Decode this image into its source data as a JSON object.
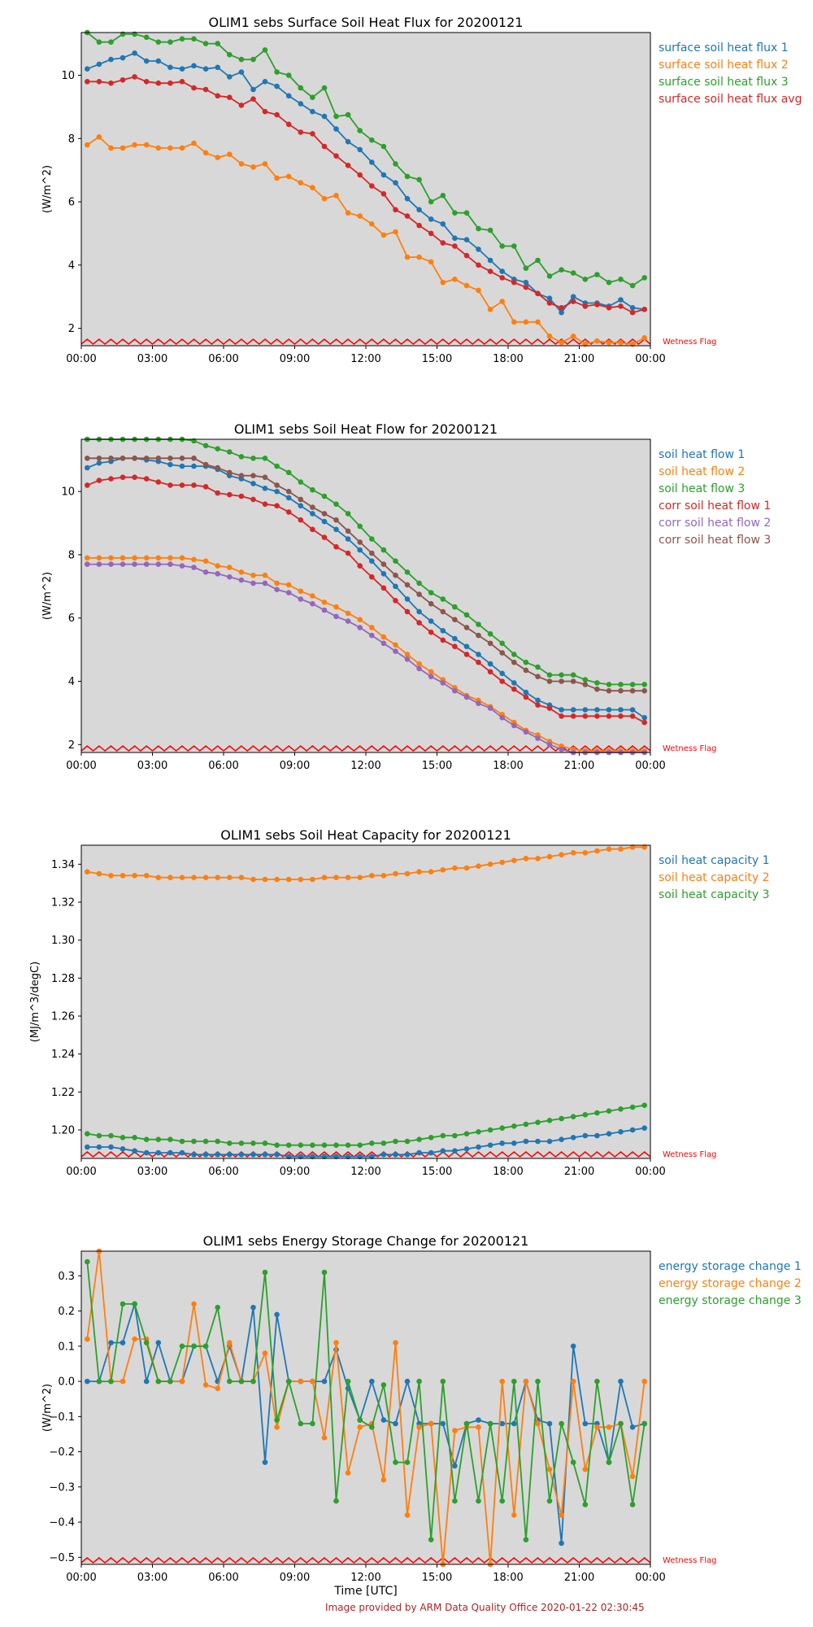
{
  "footer": {
    "credit": "Image provided by ARM Data Quality Office 2020-01-22 02:30:45"
  },
  "xlabel": "Time [UTC]",
  "xticks": [
    "00:00",
    "03:00",
    "06:00",
    "09:00",
    "12:00",
    "15:00",
    "18:00",
    "21:00",
    "00:00"
  ],
  "colors": {
    "c1": "#1f77b4",
    "c2": "#ff7f0e",
    "c3": "#2ca02c",
    "c4": "#d62728",
    "c5": "#9467bd",
    "c6": "#8c564b",
    "flag": "#ff0000",
    "plot_bg": "#d8d8d8"
  },
  "chart_data": [
    {
      "type": "line",
      "title": "OLIM1 sebs Surface Soil Heat Flux for 20200121",
      "ylabel": "(W/m^2)",
      "ylim": [
        1.45,
        11.35
      ],
      "yticks": [
        2,
        4,
        6,
        8,
        10
      ],
      "xlim": [
        0,
        24
      ],
      "flag_label": "Wetness Flag",
      "series": [
        {
          "name": "surface soil heat flux 1",
          "color": "#1f77b4",
          "values": [
            10.2,
            10.35,
            10.5,
            10.55,
            10.7,
            10.45,
            10.45,
            10.25,
            10.2,
            10.3,
            10.2,
            10.25,
            9.95,
            10.1,
            9.55,
            9.8,
            9.65,
            9.35,
            9.1,
            8.85,
            8.7,
            8.3,
            7.9,
            7.65,
            7.25,
            6.85,
            6.6,
            6.1,
            5.75,
            5.45,
            5.3,
            4.85,
            4.8,
            4.5,
            4.15,
            3.8,
            3.55,
            3.45,
            3.1,
            2.95,
            2.5,
            3.0,
            2.8,
            2.8,
            2.7,
            2.9,
            2.65,
            2.6
          ]
        },
        {
          "name": "surface soil heat flux 2",
          "color": "#ff7f0e",
          "values": [
            7.8,
            8.05,
            7.7,
            7.7,
            7.8,
            7.8,
            7.7,
            7.7,
            7.7,
            7.85,
            7.55,
            7.4,
            7.5,
            7.2,
            7.1,
            7.2,
            6.75,
            6.8,
            6.6,
            6.45,
            6.1,
            6.2,
            5.65,
            5.55,
            5.3,
            4.95,
            5.05,
            4.25,
            4.25,
            4.1,
            3.45,
            3.55,
            3.35,
            3.2,
            2.6,
            2.85,
            2.2,
            2.2,
            2.2,
            1.75,
            1.55,
            1.75,
            1.5,
            1.6,
            1.55,
            1.55,
            1.5,
            1.7
          ]
        },
        {
          "name": "surface soil heat flux 3",
          "color": "#2ca02c",
          "values": [
            11.35,
            11.05,
            11.05,
            11.3,
            11.3,
            11.2,
            11.05,
            11.05,
            11.15,
            11.15,
            11.0,
            11.0,
            10.65,
            10.5,
            10.5,
            10.8,
            10.1,
            10.0,
            9.6,
            9.3,
            9.6,
            8.7,
            8.75,
            8.25,
            7.95,
            7.75,
            7.2,
            6.8,
            6.7,
            6.0,
            6.2,
            5.65,
            5.65,
            5.15,
            5.1,
            4.6,
            4.6,
            3.9,
            4.15,
            3.65,
            3.85,
            3.75,
            3.55,
            3.7,
            3.45,
            3.55,
            3.35,
            3.6
          ]
        },
        {
          "name": "surface soil heat flux avg",
          "color": "#d62728",
          "values": [
            9.8,
            9.8,
            9.75,
            9.85,
            9.95,
            9.8,
            9.75,
            9.75,
            9.8,
            9.6,
            9.55,
            9.35,
            9.3,
            9.05,
            9.25,
            8.85,
            8.75,
            8.45,
            8.2,
            8.15,
            7.75,
            7.45,
            7.15,
            6.85,
            6.5,
            6.25,
            5.75,
            5.55,
            5.25,
            5.0,
            4.7,
            4.6,
            4.3,
            4.0,
            3.8,
            3.6,
            3.45,
            3.3,
            3.1,
            2.8,
            2.65,
            2.85,
            2.7,
            2.75,
            2.65,
            2.7,
            2.5,
            2.6
          ]
        }
      ]
    },
    {
      "type": "line",
      "title": "OLIM1 sebs Soil Heat Flow for 20200121",
      "ylabel": "(W/m^2)",
      "ylim": [
        1.75,
        11.65
      ],
      "yticks": [
        2,
        4,
        6,
        8,
        10
      ],
      "xlim": [
        0,
        24
      ],
      "flag_label": "Wetness Flag",
      "series": [
        {
          "name": "soil heat flow 1",
          "color": "#1f77b4",
          "values": [
            10.75,
            10.9,
            10.95,
            11.05,
            11.05,
            11.0,
            10.95,
            10.85,
            10.8,
            10.8,
            10.8,
            10.7,
            10.5,
            10.4,
            10.25,
            10.1,
            10.0,
            9.8,
            9.55,
            9.3,
            9.05,
            8.8,
            8.5,
            8.15,
            7.8,
            7.4,
            7.0,
            6.6,
            6.2,
            5.9,
            5.6,
            5.35,
            5.1,
            4.85,
            4.55,
            4.25,
            3.95,
            3.65,
            3.4,
            3.25,
            3.1,
            3.1,
            3.1,
            3.1,
            3.1,
            3.1,
            3.1,
            2.85
          ]
        },
        {
          "name": "soil heat flow 2",
          "color": "#ff7f0e",
          "values": [
            7.9,
            7.9,
            7.9,
            7.9,
            7.9,
            7.9,
            7.9,
            7.9,
            7.9,
            7.85,
            7.8,
            7.65,
            7.6,
            7.45,
            7.35,
            7.35,
            7.1,
            7.05,
            6.85,
            6.7,
            6.5,
            6.35,
            6.15,
            5.95,
            5.7,
            5.4,
            5.15,
            4.85,
            4.55,
            4.3,
            4.05,
            3.8,
            3.55,
            3.4,
            3.2,
            2.95,
            2.7,
            2.45,
            2.3,
            2.1,
            1.95,
            1.85,
            1.8,
            1.8,
            1.8,
            1.8,
            1.8,
            1.8
          ]
        },
        {
          "name": "soil heat flow 3",
          "color": "#2ca02c",
          "values": [
            11.65,
            11.65,
            11.65,
            11.65,
            11.65,
            11.65,
            11.65,
            11.65,
            11.65,
            11.6,
            11.45,
            11.35,
            11.25,
            11.1,
            11.05,
            11.05,
            10.8,
            10.6,
            10.3,
            10.05,
            9.85,
            9.6,
            9.3,
            8.9,
            8.5,
            8.15,
            7.8,
            7.45,
            7.1,
            6.8,
            6.6,
            6.35,
            6.1,
            5.8,
            5.5,
            5.2,
            4.85,
            4.6,
            4.45,
            4.2,
            4.2,
            4.2,
            4.05,
            3.95,
            3.9,
            3.9,
            3.9,
            3.9
          ]
        },
        {
          "name": "corr soil heat flow 1",
          "color": "#d62728",
          "values": [
            10.2,
            10.35,
            10.4,
            10.45,
            10.45,
            10.4,
            10.3,
            10.2,
            10.2,
            10.2,
            10.15,
            9.95,
            9.9,
            9.85,
            9.75,
            9.6,
            9.55,
            9.35,
            9.1,
            8.8,
            8.55,
            8.25,
            8.05,
            7.65,
            7.3,
            6.95,
            6.55,
            6.2,
            5.85,
            5.55,
            5.3,
            5.1,
            4.85,
            4.6,
            4.3,
            4.0,
            3.75,
            3.5,
            3.25,
            3.15,
            2.9,
            2.9,
            2.9,
            2.9,
            2.9,
            2.9,
            2.9,
            2.7
          ]
        },
        {
          "name": "corr soil heat flow 2",
          "color": "#9467bd",
          "values": [
            7.7,
            7.7,
            7.7,
            7.7,
            7.7,
            7.7,
            7.7,
            7.7,
            7.65,
            7.6,
            7.45,
            7.4,
            7.3,
            7.2,
            7.1,
            7.1,
            6.9,
            6.8,
            6.6,
            6.45,
            6.25,
            6.05,
            5.9,
            5.7,
            5.45,
            5.2,
            4.95,
            4.7,
            4.4,
            4.15,
            3.95,
            3.7,
            3.5,
            3.3,
            3.15,
            2.85,
            2.6,
            2.4,
            2.2,
            2.0,
            1.85,
            1.75,
            1.75,
            1.75,
            1.75,
            1.75,
            1.75,
            1.75
          ]
        },
        {
          "name": "corr soil heat flow 3",
          "color": "#8c564b",
          "values": [
            11.05,
            11.05,
            11.05,
            11.05,
            11.05,
            11.05,
            11.05,
            11.05,
            11.05,
            11.05,
            10.85,
            10.75,
            10.6,
            10.5,
            10.5,
            10.45,
            10.2,
            10.0,
            9.75,
            9.5,
            9.3,
            9.1,
            8.75,
            8.4,
            8.05,
            7.7,
            7.35,
            7.05,
            6.75,
            6.45,
            6.2,
            5.95,
            5.7,
            5.45,
            5.2,
            4.9,
            4.6,
            4.35,
            4.15,
            4.0,
            4.0,
            4.0,
            3.9,
            3.75,
            3.7,
            3.7,
            3.7,
            3.7
          ]
        }
      ]
    },
    {
      "type": "line",
      "title": "OLIM1 sebs Soil Heat Capacity for 20200121",
      "ylabel": "(MJ/m^3/degC)",
      "ylim": [
        1.185,
        1.35
      ],
      "yticks": [
        1.2,
        1.22,
        1.24,
        1.26,
        1.28,
        1.3,
        1.32,
        1.34
      ],
      "ytick_labels": [
        "1.20",
        "1.22",
        "1.24",
        "1.26",
        "1.28",
        "1.30",
        "1.32",
        "1.34"
      ],
      "xlim": [
        0,
        24
      ],
      "flag_label": "Wetness Flag",
      "series": [
        {
          "name": "soil heat capacity 1",
          "color": "#1f77b4",
          "values": [
            1.191,
            1.191,
            1.191,
            1.19,
            1.189,
            1.188,
            1.188,
            1.188,
            1.188,
            1.187,
            1.187,
            1.187,
            1.187,
            1.187,
            1.187,
            1.187,
            1.187,
            1.186,
            1.186,
            1.186,
            1.186,
            1.186,
            1.186,
            1.186,
            1.186,
            1.187,
            1.187,
            1.187,
            1.188,
            1.188,
            1.189,
            1.189,
            1.19,
            1.191,
            1.192,
            1.193,
            1.193,
            1.194,
            1.194,
            1.194,
            1.195,
            1.196,
            1.197,
            1.197,
            1.198,
            1.199,
            1.2,
            1.201
          ]
        },
        {
          "name": "soil heat capacity 2",
          "color": "#ff7f0e",
          "values": [
            1.336,
            1.335,
            1.334,
            1.334,
            1.334,
            1.334,
            1.333,
            1.333,
            1.333,
            1.333,
            1.333,
            1.333,
            1.333,
            1.333,
            1.332,
            1.332,
            1.332,
            1.332,
            1.332,
            1.332,
            1.333,
            1.333,
            1.333,
            1.333,
            1.334,
            1.334,
            1.335,
            1.335,
            1.336,
            1.336,
            1.337,
            1.338,
            1.338,
            1.339,
            1.34,
            1.341,
            1.342,
            1.343,
            1.343,
            1.344,
            1.345,
            1.346,
            1.346,
            1.347,
            1.348,
            1.348,
            1.349,
            1.349
          ]
        },
        {
          "name": "soil heat capacity 3",
          "color": "#2ca02c",
          "values": [
            1.198,
            1.197,
            1.197,
            1.196,
            1.196,
            1.195,
            1.195,
            1.195,
            1.194,
            1.194,
            1.194,
            1.194,
            1.193,
            1.193,
            1.193,
            1.193,
            1.192,
            1.192,
            1.192,
            1.192,
            1.192,
            1.192,
            1.192,
            1.192,
            1.193,
            1.193,
            1.194,
            1.194,
            1.195,
            1.196,
            1.197,
            1.197,
            1.198,
            1.199,
            1.2,
            1.201,
            1.202,
            1.203,
            1.204,
            1.205,
            1.206,
            1.207,
            1.208,
            1.209,
            1.21,
            1.211,
            1.212,
            1.213
          ]
        }
      ]
    },
    {
      "type": "line",
      "title": "OLIM1 sebs Energy Storage Change for 20200121",
      "ylabel": "(W/m^2)",
      "ylim": [
        -0.52,
        0.37
      ],
      "yticks": [
        -0.5,
        -0.4,
        -0.3,
        -0.2,
        -0.1,
        0.0,
        0.1,
        0.2,
        0.3
      ],
      "ytick_labels": [
        "−0.5",
        "−0.4",
        "−0.3",
        "−0.2",
        "−0.1",
        "0.0",
        "0.1",
        "0.2",
        "0.3"
      ],
      "xlim": [
        0,
        24
      ],
      "flag_label": "Wetness Flag",
      "series": [
        {
          "name": "energy storage change 1",
          "color": "#1f77b4",
          "values": [
            0.0,
            0.0,
            0.11,
            0.11,
            0.22,
            0.0,
            0.11,
            0.0,
            0.0,
            0.1,
            0.1,
            0.0,
            0.1,
            0.0,
            0.21,
            -0.23,
            0.19,
            0.0,
            0.0,
            0.0,
            0.0,
            0.09,
            -0.02,
            -0.11,
            0.0,
            -0.11,
            -0.12,
            0.0,
            -0.12,
            -0.12,
            -0.12,
            -0.24,
            -0.12,
            -0.11,
            -0.12,
            -0.12,
            -0.12,
            0.0,
            -0.11,
            -0.12,
            -0.46,
            0.1,
            -0.12,
            -0.12,
            -0.23,
            0.0,
            -0.13,
            -0.12
          ]
        },
        {
          "name": "energy storage change 2",
          "color": "#ff7f0e",
          "values": [
            0.12,
            0.37,
            0.0,
            0.0,
            0.12,
            0.12,
            0.0,
            0.0,
            0.0,
            0.22,
            -0.01,
            -0.02,
            0.11,
            0.0,
            0.0,
            0.08,
            -0.13,
            0.0,
            0.0,
            0.0,
            -0.16,
            0.11,
            -0.26,
            -0.13,
            -0.12,
            -0.28,
            0.11,
            -0.38,
            -0.13,
            -0.12,
            -0.52,
            -0.14,
            -0.13,
            -0.13,
            -0.52,
            0.0,
            -0.38,
            0.0,
            -0.12,
            -0.25,
            -0.38,
            0.0,
            -0.25,
            -0.13,
            -0.13,
            -0.12,
            -0.27,
            0.0
          ]
        },
        {
          "name": "energy storage change 3",
          "color": "#2ca02c",
          "values": [
            0.34,
            0.0,
            0.0,
            0.22,
            0.22,
            0.11,
            0.0,
            0.0,
            0.1,
            0.1,
            0.1,
            0.21,
            0.0,
            0.0,
            0.0,
            0.31,
            -0.11,
            0.0,
            -0.12,
            -0.12,
            0.31,
            -0.34,
            0.0,
            -0.11,
            -0.13,
            -0.01,
            -0.23,
            -0.23,
            0.0,
            -0.45,
            0.0,
            -0.34,
            -0.12,
            -0.34,
            -0.12,
            -0.34,
            0.0,
            -0.45,
            0.0,
            -0.34,
            -0.12,
            -0.23,
            -0.35,
            0.0,
            -0.23,
            -0.12,
            -0.35,
            -0.12
          ]
        }
      ]
    }
  ]
}
